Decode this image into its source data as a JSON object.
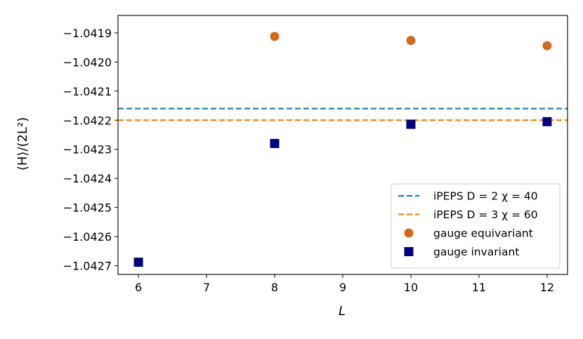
{
  "chart_data": {
    "type": "scatter",
    "xlabel": "L",
    "ylabel": "⟨H⟩/(2L²)",
    "xlim": [
      5.7,
      12.3
    ],
    "ylim": [
      -1.04273,
      -1.04184
    ],
    "x_ticks": [
      6,
      7,
      8,
      9,
      10,
      11,
      12
    ],
    "y_ticks": [
      -1.0419,
      -1.042,
      -1.0421,
      -1.0422,
      -1.0423,
      -1.0424,
      -1.0425,
      -1.0426,
      -1.0427
    ],
    "x_tick_labels": [
      "6",
      "7",
      "8",
      "9",
      "10",
      "11",
      "12"
    ],
    "y_tick_labels": [
      "−1.0419",
      "−1.0420",
      "−1.0421",
      "−1.0422",
      "−1.0423",
      "−1.0424",
      "−1.0425",
      "−1.0426",
      "−1.0427"
    ],
    "grid": false,
    "legend_position": "lower-right",
    "hlines": [
      {
        "name": "iPEPS D = 2 χ = 40",
        "y": -1.04216,
        "color": "#1f77b4",
        "style": "dashed"
      },
      {
        "name": "iPEPS D = 3 χ = 60",
        "y": -1.0422,
        "color": "#ff7f0e",
        "style": "dashed"
      }
    ],
    "series": [
      {
        "name": "gauge equivariant",
        "marker": "circle",
        "color": "#d2691e",
        "x": [
          8,
          10,
          12
        ],
        "y": [
          -1.041912,
          -1.041926,
          -1.041944
        ]
      },
      {
        "name": "gauge invariant",
        "marker": "square",
        "color": "#000080",
        "x": [
          6,
          8,
          10,
          12
        ],
        "y": [
          -1.042688,
          -1.04228,
          -1.042214,
          -1.042205
        ]
      }
    ]
  }
}
